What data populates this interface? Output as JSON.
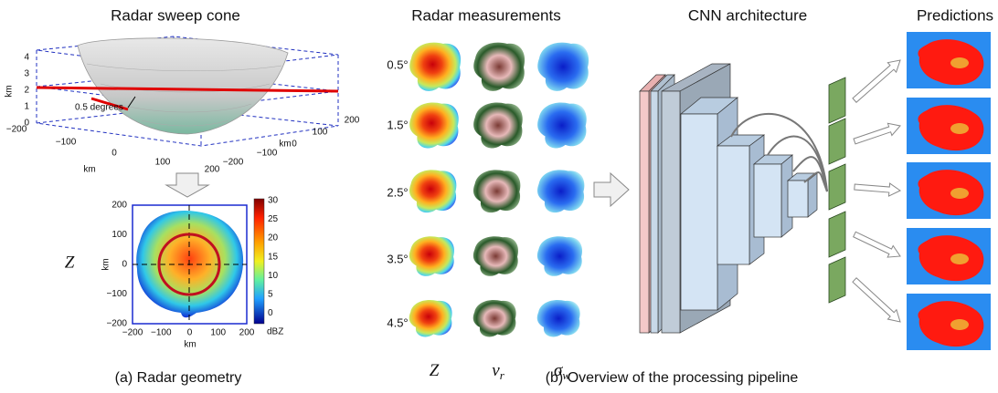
{
  "panel_a": {
    "title": "Radar sweep cone",
    "cone_z_ticks": [
      "0",
      "1",
      "2",
      "3",
      "4"
    ],
    "cone_z_unit": "km",
    "cone_x_ticks": [
      "−200",
      "−100",
      "0",
      "100",
      "200"
    ],
    "cone_x_unit": "km",
    "cone_y_ticks": [
      "−200",
      "−100",
      "0",
      "100",
      "200"
    ],
    "cone_y_unit": "km",
    "annotation": "0.5 degrees",
    "heatmap_variable": "Z",
    "heatmap_y_ticks": [
      "200",
      "100",
      "0",
      "−100",
      "−200"
    ],
    "heatmap_y_unit": "km",
    "heatmap_x_ticks": [
      "−200",
      "−100",
      "0",
      "100",
      "200"
    ],
    "heatmap_x_unit": "km",
    "colorbar_ticks": [
      "30",
      "25",
      "20",
      "15",
      "10",
      "5",
      "0"
    ],
    "colorbar_unit": "dBZ",
    "caption": "(a) Radar geometry"
  },
  "panel_b": {
    "measurements_title": "Radar measurements",
    "elevations": [
      "0.5°",
      "1.5°",
      "2.5°",
      "3.5°",
      "4.5°"
    ],
    "variables": [
      {
        "symbol": "Z"
      },
      {
        "symbol": "v",
        "subscript": "r"
      },
      {
        "symbol": "σ",
        "subscript": "w"
      }
    ],
    "cnn_title": "CNN architecture",
    "predictions_title": "Predictions",
    "caption": "(b) Overview of the processing pipeline"
  }
}
